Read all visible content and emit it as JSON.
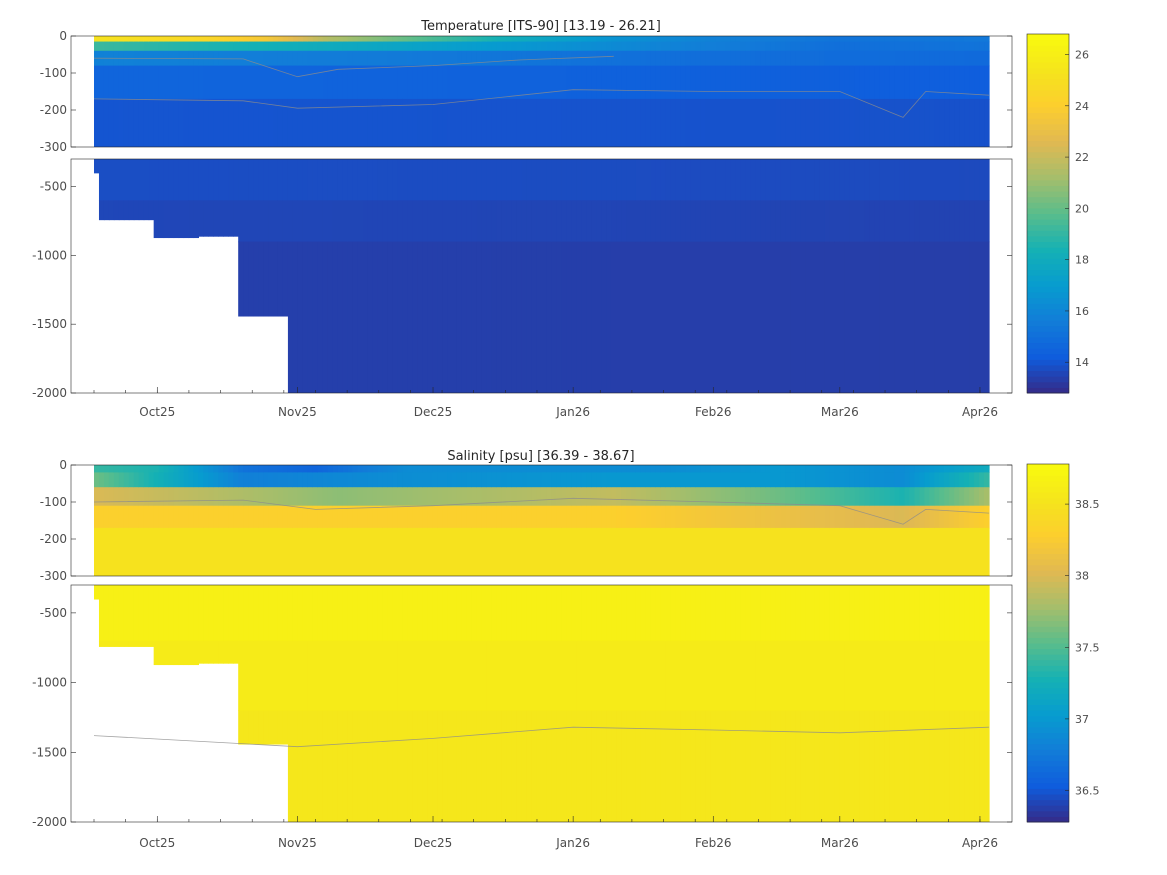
{
  "chart_data": [
    {
      "type": "heatmap",
      "title": "Temperature [ITS-90]   [13.19 - 26.21]",
      "variable": "temperature",
      "x_type": "date",
      "xlim": [
        "2025-09-17",
        "2026-04-03"
      ],
      "x_ticks": [
        {
          "date": "2025-10-01",
          "label": "Oct25"
        },
        {
          "date": "2025-11-01",
          "label": "Nov25"
        },
        {
          "date": "2025-12-01",
          "label": "Dec25"
        },
        {
          "date": "2026-01-01",
          "label": "Jan26"
        },
        {
          "date": "2026-02-01",
          "label": "Feb26"
        },
        {
          "date": "2026-03-01",
          "label": "Mar26"
        },
        {
          "date": "2026-04-01",
          "label": "Apr26"
        }
      ],
      "upper_panel": {
        "ylim": [
          -300,
          0
        ],
        "y_ticks": [
          0,
          -100,
          -200,
          -300
        ],
        "y_tick_labels": [
          "0",
          "-100",
          "-200",
          "-300"
        ]
      },
      "lower_panel": {
        "ylim": [
          -2000,
          -300
        ],
        "y_ticks": [
          -500,
          -1000,
          -1500,
          -2000
        ],
        "y_tick_labels": [
          "-500",
          "-1000",
          "-1500",
          "-2000"
        ]
      },
      "colorbar": {
        "range": [
          12.8,
          26.8
        ],
        "ticks": [
          14,
          16,
          18,
          20,
          22,
          24,
          26
        ],
        "tick_labels": [
          "14",
          "16",
          "18",
          "20",
          "22",
          "24",
          "26"
        ],
        "colormap": "parula"
      },
      "profile_depth_limits": [
        {
          "from": "2025-09-17",
          "depth": -400
        },
        {
          "from": "2025-09-18",
          "depth": -740
        },
        {
          "from": "2025-09-30",
          "depth": -870
        },
        {
          "from": "2025-10-10",
          "depth": -860
        },
        {
          "from": "2025-10-19",
          "depth": -1440
        },
        {
          "from": "2025-10-30",
          "depth": -2000
        }
      ],
      "layers": [
        {
          "from_depth": 0,
          "to_depth": -15,
          "values": [
            {
              "date": "2025-09-17",
              "value": 25.2
            },
            {
              "date": "2025-10-10",
              "value": 24.6
            },
            {
              "date": "2025-10-25",
              "value": 23.6
            },
            {
              "date": "2025-11-08",
              "value": 21.5
            },
            {
              "date": "2025-11-30",
              "value": 19.6
            },
            {
              "date": "2025-12-20",
              "value": 18.0
            },
            {
              "date": "2026-01-10",
              "value": 16.6
            },
            {
              "date": "2026-02-01",
              "value": 15.8
            },
            {
              "date": "2026-03-01",
              "value": 15.2
            },
            {
              "date": "2026-04-03",
              "value": 15.4
            }
          ]
        },
        {
          "from_depth": -15,
          "to_depth": -40,
          "values": [
            {
              "date": "2025-09-17",
              "value": 19.2
            },
            {
              "date": "2025-10-20",
              "value": 18.4
            },
            {
              "date": "2025-11-20",
              "value": 17.6
            },
            {
              "date": "2025-12-20",
              "value": 16.8
            },
            {
              "date": "2026-01-20",
              "value": 15.9
            },
            {
              "date": "2026-03-01",
              "value": 15.0
            },
            {
              "date": "2026-04-03",
              "value": 15.2
            }
          ]
        },
        {
          "from_depth": -40,
          "to_depth": -80,
          "values": [
            {
              "date": "2025-09-17",
              "value": 15.8
            },
            {
              "date": "2025-11-20",
              "value": 15.5
            },
            {
              "date": "2026-01-20",
              "value": 15.0
            },
            {
              "date": "2026-04-03",
              "value": 14.8
            }
          ]
        },
        {
          "from_depth": -80,
          "to_depth": -170,
          "values": [
            {
              "date": "2025-09-17",
              "value": 14.6
            },
            {
              "date": "2026-01-20",
              "value": 14.4
            },
            {
              "date": "2026-04-03",
              "value": 14.3
            }
          ]
        },
        {
          "from_depth": -170,
          "to_depth": -300,
          "values": [
            {
              "date": "2025-09-17",
              "value": 14.0
            },
            {
              "date": "2026-04-03",
              "value": 13.9
            }
          ]
        },
        {
          "from_depth": -300,
          "to_depth": -600,
          "values": [
            {
              "date": "2025-09-17",
              "value": 13.8
            },
            {
              "date": "2026-04-03",
              "value": 13.7
            }
          ]
        },
        {
          "from_depth": -600,
          "to_depth": -900,
          "values": [
            {
              "date": "2025-09-17",
              "value": 13.6
            },
            {
              "date": "2026-04-03",
              "value": 13.5
            }
          ]
        },
        {
          "from_depth": -900,
          "to_depth": -2000,
          "values": [
            {
              "date": "2025-09-17",
              "value": 13.4
            },
            {
              "date": "2026-04-03",
              "value": 13.35
            }
          ]
        }
      ],
      "contours": [
        {
          "level": 15,
          "points": [
            {
              "date": "2025-09-17",
              "depth": -60
            },
            {
              "date": "2025-10-20",
              "depth": -62
            },
            {
              "date": "2025-11-01",
              "depth": -110
            },
            {
              "date": "2025-11-10",
              "depth": -90
            },
            {
              "date": "2025-12-01",
              "depth": -80
            },
            {
              "date": "2025-12-20",
              "depth": -65
            },
            {
              "date": "2026-01-10",
              "depth": -55
            }
          ]
        },
        {
          "level": 14,
          "points": [
            {
              "date": "2025-09-17",
              "depth": -170
            },
            {
              "date": "2025-10-20",
              "depth": -175
            },
            {
              "date": "2025-11-01",
              "depth": -195
            },
            {
              "date": "2025-12-01",
              "depth": -185
            },
            {
              "date": "2026-01-01",
              "depth": -145
            },
            {
              "date": "2026-02-01",
              "depth": -150
            },
            {
              "date": "2026-03-01",
              "depth": -150
            },
            {
              "date": "2026-03-15",
              "depth": -220
            },
            {
              "date": "2026-03-20",
              "depth": -150
            },
            {
              "date": "2026-04-03",
              "depth": -160
            }
          ]
        }
      ]
    },
    {
      "type": "heatmap",
      "title": "Salinity [psu]   [36.39 - 38.67]",
      "variable": "salinity",
      "x_type": "date",
      "xlim": [
        "2025-09-17",
        "2026-04-03"
      ],
      "x_ticks": [
        {
          "date": "2025-10-01",
          "label": "Oct25"
        },
        {
          "date": "2025-11-01",
          "label": "Nov25"
        },
        {
          "date": "2025-12-01",
          "label": "Dec25"
        },
        {
          "date": "2026-01-01",
          "label": "Jan26"
        },
        {
          "date": "2026-02-01",
          "label": "Feb26"
        },
        {
          "date": "2026-03-01",
          "label": "Mar26"
        },
        {
          "date": "2026-04-01",
          "label": "Apr26"
        }
      ],
      "upper_panel": {
        "ylim": [
          -300,
          0
        ],
        "y_ticks": [
          0,
          -100,
          -200,
          -300
        ],
        "y_tick_labels": [
          "0",
          "-100",
          "-200",
          "-300"
        ]
      },
      "lower_panel": {
        "ylim": [
          -2000,
          -300
        ],
        "y_ticks": [
          -500,
          -1000,
          -1500,
          -2000
        ],
        "y_tick_labels": [
          "-500",
          "-1000",
          "-1500",
          "-2000"
        ]
      },
      "colorbar": {
        "range": [
          36.28,
          38.78
        ],
        "ticks": [
          36.5,
          37,
          37.5,
          38,
          38.5
        ],
        "tick_labels": [
          "36.5",
          "37",
          "37.5",
          "38",
          "38.5"
        ],
        "colormap": "parula"
      },
      "profile_depth_limits": [
        {
          "from": "2025-09-17",
          "depth": -400
        },
        {
          "from": "2025-09-18",
          "depth": -740
        },
        {
          "from": "2025-09-30",
          "depth": -870
        },
        {
          "from": "2025-10-10",
          "depth": -860
        },
        {
          "from": "2025-10-19",
          "depth": -1440
        },
        {
          "from": "2025-10-30",
          "depth": -2000
        }
      ],
      "layers": [
        {
          "from_depth": 0,
          "to_depth": -20,
          "values": [
            {
              "date": "2025-09-17",
              "value": 37.4
            },
            {
              "date": "2025-10-01",
              "value": 37.3
            },
            {
              "date": "2025-10-20",
              "value": 36.7
            },
            {
              "date": "2025-11-05",
              "value": 36.6
            },
            {
              "date": "2025-11-25",
              "value": 36.9
            },
            {
              "date": "2025-12-20",
              "value": 36.9
            },
            {
              "date": "2026-01-20",
              "value": 36.9
            },
            {
              "date": "2026-02-15",
              "value": 37.0
            },
            {
              "date": "2026-03-15",
              "value": 36.9
            },
            {
              "date": "2026-04-03",
              "value": 37.2
            }
          ]
        },
        {
          "from_depth": -20,
          "to_depth": -60,
          "values": [
            {
              "date": "2025-09-17",
              "value": 37.6
            },
            {
              "date": "2025-10-20",
              "value": 36.8
            },
            {
              "date": "2025-11-20",
              "value": 36.9
            },
            {
              "date": "2026-01-10",
              "value": 37.0
            },
            {
              "date": "2026-02-15",
              "value": 37.0
            },
            {
              "date": "2026-03-15",
              "value": 36.9
            },
            {
              "date": "2026-04-03",
              "value": 37.4
            }
          ]
        },
        {
          "from_depth": -60,
          "to_depth": -110,
          "values": [
            {
              "date": "2025-09-17",
              "value": 38.0
            },
            {
              "date": "2025-11-10",
              "value": 37.7
            },
            {
              "date": "2026-01-10",
              "value": 37.9
            },
            {
              "date": "2026-02-15",
              "value": 37.6
            },
            {
              "date": "2026-03-15",
              "value": 37.3
            },
            {
              "date": "2026-04-03",
              "value": 37.8
            }
          ]
        },
        {
          "from_depth": -110,
          "to_depth": -170,
          "values": [
            {
              "date": "2025-09-17",
              "value": 38.3
            },
            {
              "date": "2026-01-10",
              "value": 38.3
            },
            {
              "date": "2026-03-15",
              "value": 38.0
            },
            {
              "date": "2026-04-03",
              "value": 38.3
            }
          ]
        },
        {
          "from_depth": -170,
          "to_depth": -300,
          "values": [
            {
              "date": "2025-09-17",
              "value": 38.5
            },
            {
              "date": "2026-04-03",
              "value": 38.5
            }
          ]
        },
        {
          "from_depth": -300,
          "to_depth": -700,
          "values": [
            {
              "date": "2025-09-17",
              "value": 38.66
            },
            {
              "date": "2026-04-03",
              "value": 38.65
            }
          ]
        },
        {
          "from_depth": -700,
          "to_depth": -1200,
          "values": [
            {
              "date": "2025-09-17",
              "value": 38.6
            },
            {
              "date": "2026-04-03",
              "value": 38.6
            }
          ]
        },
        {
          "from_depth": -1200,
          "to_depth": -2000,
          "values": [
            {
              "date": "2025-09-17",
              "value": 38.55
            },
            {
              "date": "2026-04-03",
              "value": 38.55
            }
          ]
        }
      ],
      "contours": [
        {
          "level": 38,
          "points": [
            {
              "date": "2025-09-17",
              "depth": -100
            },
            {
              "date": "2025-10-20",
              "depth": -95
            },
            {
              "date": "2025-11-05",
              "depth": -120
            },
            {
              "date": "2025-12-01",
              "depth": -110
            },
            {
              "date": "2026-01-01",
              "depth": -90
            },
            {
              "date": "2026-02-01",
              "depth": -100
            },
            {
              "date": "2026-03-01",
              "depth": -110
            },
            {
              "date": "2026-03-15",
              "depth": -160
            },
            {
              "date": "2026-03-20",
              "depth": -120
            },
            {
              "date": "2026-04-03",
              "depth": -130
            }
          ]
        },
        {
          "level": 38.5,
          "points": [
            {
              "date": "2025-09-17",
              "depth": -1380
            },
            {
              "date": "2025-11-01",
              "depth": -1460
            },
            {
              "date": "2025-12-01",
              "depth": -1400
            },
            {
              "date": "2026-01-01",
              "depth": -1320
            },
            {
              "date": "2026-02-01",
              "depth": -1340
            },
            {
              "date": "2026-03-01",
              "depth": -1360
            },
            {
              "date": "2026-04-03",
              "depth": -1320
            }
          ]
        }
      ]
    }
  ]
}
